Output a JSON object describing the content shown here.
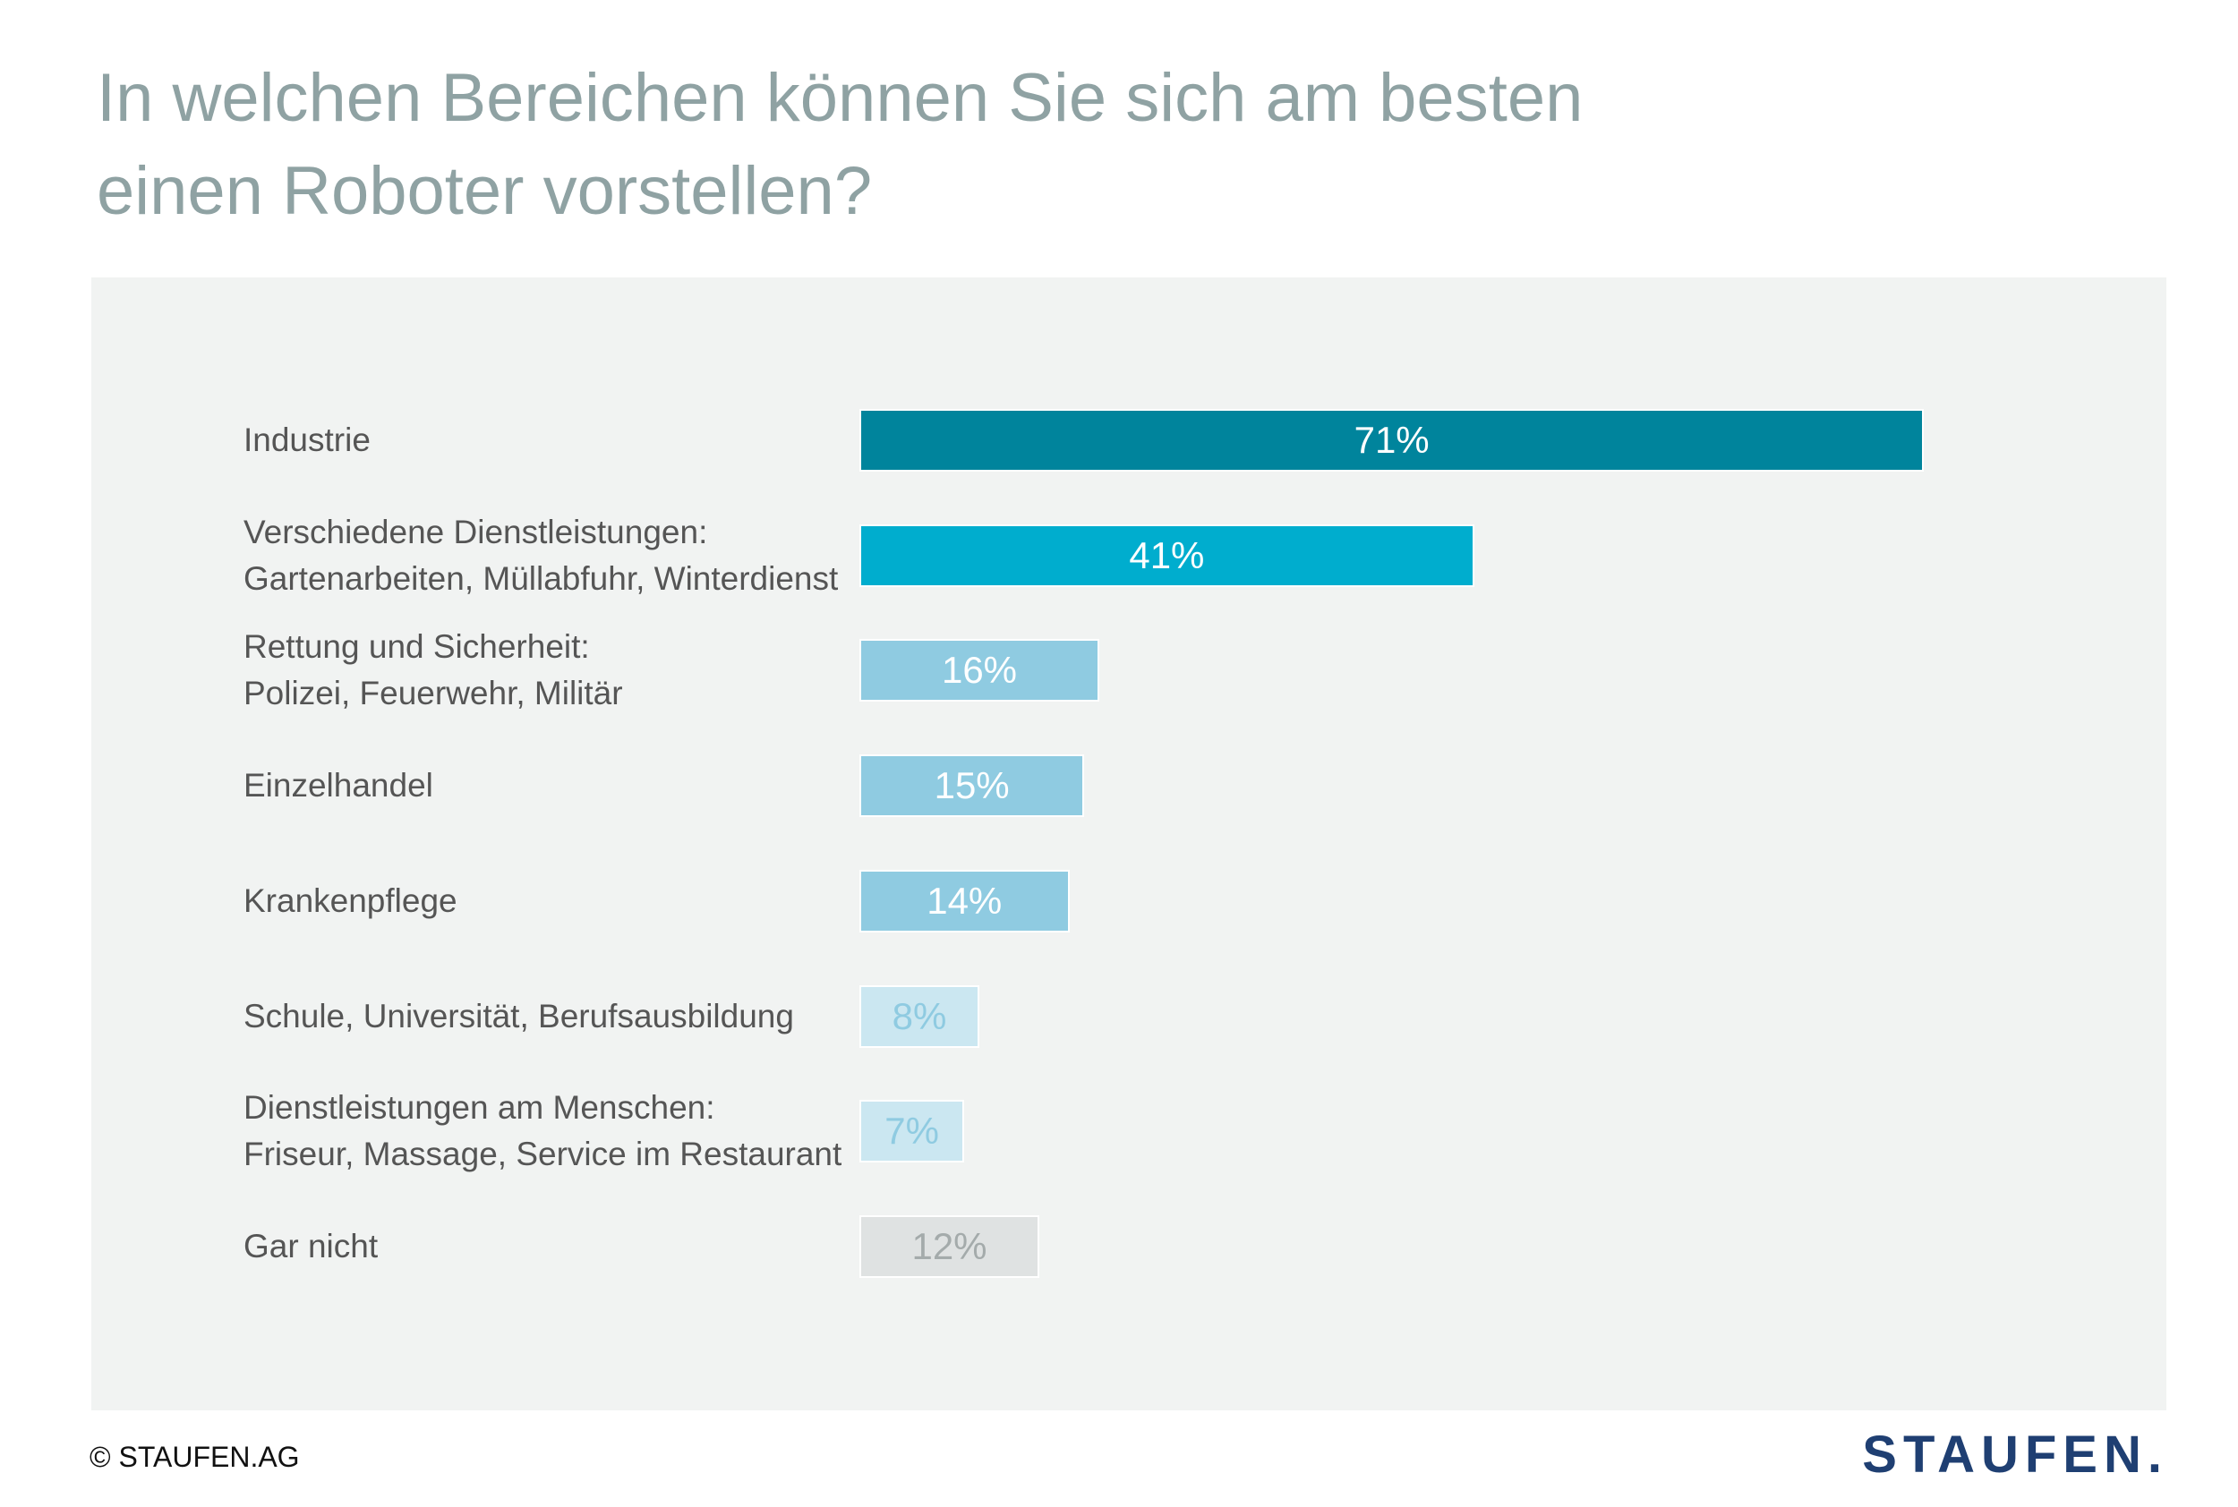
{
  "chart_data": {
    "type": "bar",
    "orientation": "horizontal",
    "title_lines": [
      "In welchen Bereichen können Sie sich am besten",
      "einen Roboter vorstellen?"
    ],
    "xlim": [
      0,
      100
    ],
    "grid": false,
    "categories": [
      {
        "lines": [
          "Industrie"
        ],
        "value": 71,
        "label": "71%",
        "color": "#00849c",
        "text_color": "#ffffff"
      },
      {
        "lines": [
          "Verschiedene Dienstleistungen:",
          "Gartenarbeiten, Müllabfuhr, Winterdienst"
        ],
        "value": 41,
        "label": "41%",
        "color": "#00adce",
        "text_color": "#ffffff"
      },
      {
        "lines": [
          "Rettung und Sicherheit:",
          "Polizei, Feuerwehr, Militär"
        ],
        "value": 16,
        "label": "16%",
        "color": "#8fcbe1",
        "text_color": "#ffffff"
      },
      {
        "lines": [
          "Einzelhandel"
        ],
        "value": 15,
        "label": "15%",
        "color": "#8fcbe1",
        "text_color": "#ffffff"
      },
      {
        "lines": [
          "Krankenpflege"
        ],
        "value": 14,
        "label": "14%",
        "color": "#8fcbe1",
        "text_color": "#ffffff"
      },
      {
        "lines": [
          "Schule, Universität, Berufsausbildung"
        ],
        "value": 8,
        "label": "8%",
        "color": "#cbe7f1",
        "text_color": "#8fcbe1"
      },
      {
        "lines": [
          "Dienstleistungen am Menschen:",
          "Friseur, Massage, Service im Restaurant"
        ],
        "value": 7,
        "label": "7%",
        "color": "#cbe7f1",
        "text_color": "#8fcbe1"
      },
      {
        "lines": [
          "Gar nicht"
        ],
        "value": 12,
        "label": "12%",
        "color": "#dfe2e2",
        "text_color": "#a4abab"
      }
    ]
  },
  "footer": {
    "copyright": "© STAUFEN.AG",
    "logo": "STAUFEN."
  }
}
